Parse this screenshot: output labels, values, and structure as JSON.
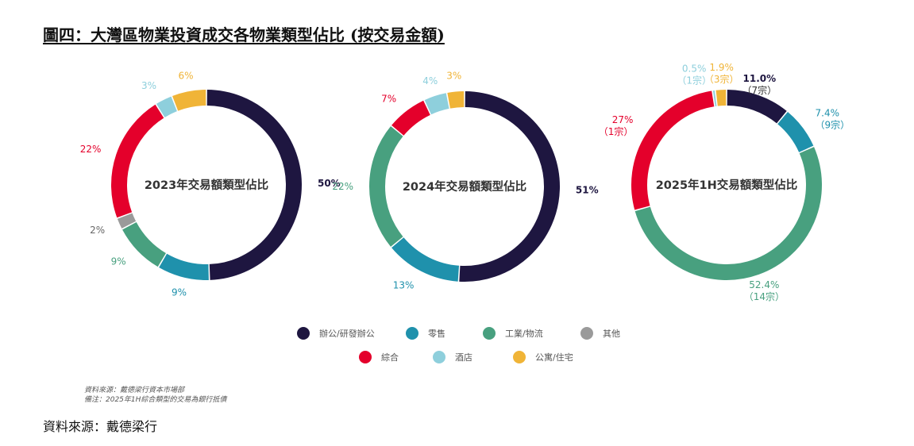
{
  "title": "圖四：大灣區物業投資成交各物業類型佔比 (按交易金額)",
  "colors": {
    "office": "#1e1640",
    "retail": "#1f91ac",
    "industrial": "#48a07f",
    "other": "#9a9a9a",
    "composite": "#e4002b",
    "hotel": "#8ecfdc",
    "residential": "#f0b437"
  },
  "legend": [
    {
      "key": "office",
      "label": "辦公/研發辦公"
    },
    {
      "key": "retail",
      "label": "零售"
    },
    {
      "key": "industrial",
      "label": "工業/物流"
    },
    {
      "key": "other",
      "label": "其他"
    },
    {
      "key": "composite",
      "label": "綜合"
    },
    {
      "key": "hotel",
      "label": "酒店"
    },
    {
      "key": "residential",
      "label": "公寓/住宅"
    }
  ],
  "chart_data": [
    {
      "type": "pie",
      "center_label": "2023年交易額類型佔比",
      "slices": [
        {
          "key": "office",
          "value": 50,
          "label": "50%"
        },
        {
          "key": "retail",
          "value": 9,
          "label": "9%"
        },
        {
          "key": "industrial",
          "value": 9,
          "label": "9%"
        },
        {
          "key": "other",
          "value": 2,
          "label": "2%"
        },
        {
          "key": "composite",
          "value": 22,
          "label": "22%"
        },
        {
          "key": "hotel",
          "value": 3,
          "label": "3%"
        },
        {
          "key": "residential",
          "value": 6,
          "label": "6%"
        }
      ]
    },
    {
      "type": "pie",
      "center_label": "2024年交易額類型佔比",
      "slices": [
        {
          "key": "office",
          "value": 51,
          "label": "51%"
        },
        {
          "key": "retail",
          "value": 13,
          "label": "13%"
        },
        {
          "key": "industrial",
          "value": 22,
          "label": "22%"
        },
        {
          "key": "composite",
          "value": 7,
          "label": "7%"
        },
        {
          "key": "hotel",
          "value": 4,
          "label": "4%"
        },
        {
          "key": "residential",
          "value": 3,
          "label": "3%"
        }
      ]
    },
    {
      "type": "pie",
      "center_label": "2025年1H交易額類型佔比",
      "slices": [
        {
          "key": "office",
          "value": 11.0,
          "label": "11.0%",
          "sub": "（7宗）"
        },
        {
          "key": "retail",
          "value": 7.4,
          "label": "7.4%",
          "sub": "（9宗）"
        },
        {
          "key": "industrial",
          "value": 52.4,
          "label": "52.4%",
          "sub": "（14宗）"
        },
        {
          "key": "composite",
          "value": 27,
          "label": "27%",
          "sub": "（1宗）"
        },
        {
          "key": "hotel",
          "value": 0.5,
          "label": "0.5%",
          "sub": "（1宗）"
        },
        {
          "key": "residential",
          "value": 1.9,
          "label": "1.9%",
          "sub": "（3宗）"
        }
      ]
    }
  ],
  "notes": {
    "line1": "資料來源：戴德梁行資本市場部",
    "line2": "備注：2025年1H綜合類型的交易為銀行抵債"
  },
  "source": "資料來源：戴德梁行"
}
